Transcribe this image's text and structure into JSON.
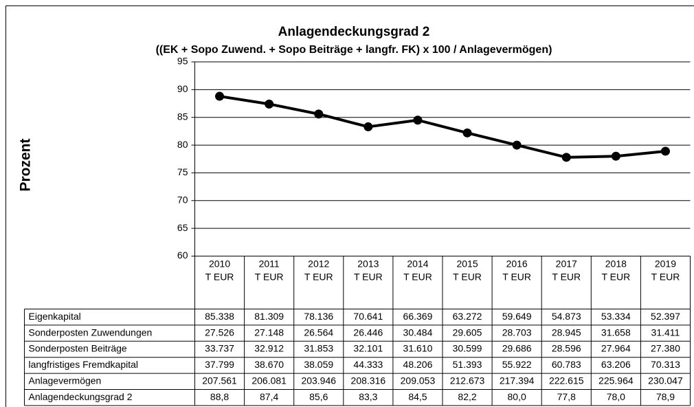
{
  "chart_data": {
    "type": "line",
    "title": "Anlagendeckungsgrad 2",
    "subtitle": "((EK + Sopo Zuwend.  + Sopo Beiträge + langfr. FK) x 100 / Anlagevermögen)",
    "y_label": "Prozent",
    "categories": [
      "2010",
      "2011",
      "2012",
      "2013",
      "2014",
      "2015",
      "2016",
      "2017",
      "2018",
      "2019"
    ],
    "column_unit": "T EUR",
    "ylim": [
      60,
      95
    ],
    "yticks": [
      60,
      65,
      70,
      75,
      80,
      85,
      90,
      95
    ],
    "grid": true,
    "series": [
      {
        "name": "Anlagendeckungsgrad 2",
        "color": "#000000",
        "values": [
          88.8,
          87.4,
          85.6,
          83.3,
          84.5,
          82.2,
          80.0,
          77.8,
          78.0,
          78.9
        ],
        "value_labels": [
          "88,8",
          "87,4",
          "85,6",
          "83,3",
          "84,5",
          "82,2",
          "80,0",
          "77,8",
          "78,0",
          "78,9"
        ]
      }
    ],
    "table_rows": [
      {
        "label": "Eigenkapital",
        "values": [
          "85.338",
          "81.309",
          "78.136",
          "70.641",
          "66.369",
          "63.272",
          "59.649",
          "54.873",
          "53.334",
          "52.397"
        ]
      },
      {
        "label": "Sonderposten Zuwendungen",
        "values": [
          "27.526",
          "27.148",
          "26.564",
          "26.446",
          "30.484",
          "29.605",
          "28.703",
          "28.945",
          "31.658",
          "31.411"
        ]
      },
      {
        "label": "Sonderposten Beiträge",
        "values": [
          "33.737",
          "32.912",
          "31.853",
          "32.101",
          "31.610",
          "30.599",
          "29.686",
          "28.596",
          "27.964",
          "27.380"
        ]
      },
      {
        "label": "langfristiges Fremdkapital",
        "values": [
          "37.799",
          "38.670",
          "38.059",
          "44.333",
          "48.206",
          "51.393",
          "55.922",
          "60.783",
          "63.206",
          "70.313"
        ]
      },
      {
        "label": "Anlagevermögen",
        "values": [
          "207.561",
          "206.081",
          "203.946",
          "208.316",
          "209.053",
          "212.673",
          "217.394",
          "222.615",
          "225.964",
          "230.047"
        ]
      }
    ]
  }
}
